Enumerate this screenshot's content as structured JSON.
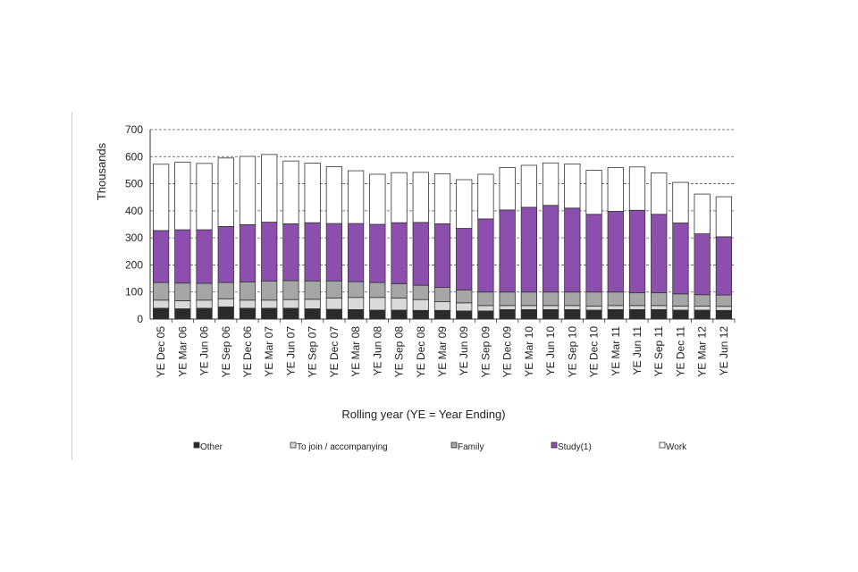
{
  "chart_data": {
    "type": "bar",
    "stacked": true,
    "title": "",
    "xlabel": "Rolling year (YE = Year Ending)",
    "ylabel": "Thousands",
    "ylim": [
      0,
      700
    ],
    "yticks": [
      0,
      100,
      200,
      300,
      400,
      500,
      600,
      700
    ],
    "grid": "dashed horizontal",
    "legend_position": "bottom",
    "categories": [
      "YE Dec 05",
      "YE Mar 06",
      "YE Jun 06",
      "YE Sep 06",
      "YE Dec 06",
      "YE Mar 07",
      "YE Jun 07",
      "YE Sep 07",
      "YE Dec 07",
      "YE Mar 08",
      "YE Jun 08",
      "YE Sep 08",
      "YE Dec 08",
      "YE Mar 09",
      "YE Jun 09",
      "YE Sep 09",
      "YE Dec 09",
      "YE Mar 10",
      "YE Jun 10",
      "YE Sep 10",
      "YE Dec 10",
      "YE Mar 11",
      "YE Jun 11",
      "YE Sep 11",
      "YE Dec 11",
      "YE Mar 12",
      "YE Jun 12"
    ],
    "series": [
      {
        "name": "Other",
        "color": "#2b2b2b",
        "values": [
          40,
          38,
          40,
          45,
          40,
          40,
          40,
          38,
          36,
          35,
          33,
          33,
          32,
          32,
          30,
          30,
          35,
          35,
          35,
          35,
          33,
          35,
          35,
          35,
          33,
          33,
          32
        ]
      },
      {
        "name": "To join / accompanying",
        "color": "#d9d9d9",
        "values": [
          30,
          30,
          30,
          30,
          30,
          30,
          32,
          35,
          42,
          45,
          47,
          45,
          40,
          32,
          30,
          20,
          15,
          15,
          15,
          15,
          15,
          15,
          15,
          15,
          15,
          15,
          15
        ]
      },
      {
        "name": "Family",
        "color": "#a6a6a6",
        "values": [
          65,
          65,
          62,
          60,
          67,
          70,
          70,
          68,
          63,
          58,
          55,
          53,
          53,
          53,
          47,
          50,
          50,
          50,
          50,
          50,
          52,
          50,
          47,
          47,
          45,
          42,
          42
        ]
      },
      {
        "name": "Study(1)",
        "color": "#8d4fae",
        "values": [
          192,
          197,
          198,
          207,
          212,
          218,
          210,
          215,
          212,
          215,
          215,
          225,
          232,
          235,
          228,
          270,
          303,
          313,
          320,
          310,
          287,
          298,
          305,
          290,
          262,
          225,
          215
        ]
      },
      {
        "name": "Work",
        "color": "#ffffff",
        "values": [
          245,
          250,
          245,
          253,
          252,
          250,
          232,
          220,
          210,
          195,
          185,
          185,
          185,
          185,
          180,
          165,
          157,
          155,
          157,
          163,
          163,
          162,
          160,
          153,
          150,
          147,
          148
        ]
      }
    ]
  }
}
